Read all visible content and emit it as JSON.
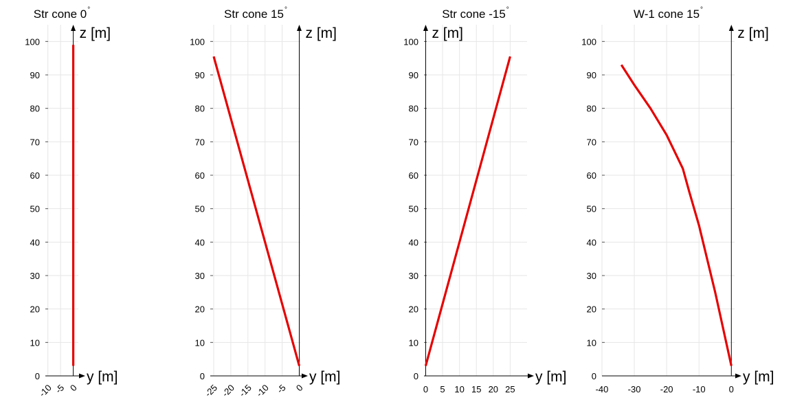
{
  "chart_data": [
    {
      "type": "line",
      "title": "Str cone 0",
      "title_suffix": "°",
      "xlabel": "y [m]",
      "ylabel": "z [m]",
      "xlim": [
        -11,
        2
      ],
      "ylim": [
        0,
        105
      ],
      "xticks": [
        -10,
        -5,
        0
      ],
      "xtick_labels": [
        "-10",
        "-5",
        "0"
      ],
      "yticks": [
        0,
        10,
        20,
        30,
        40,
        50,
        60,
        70,
        80,
        90,
        100
      ],
      "ytick_labels": [
        "0",
        "10",
        "20",
        "30",
        "40",
        "50",
        "60",
        "70",
        "80",
        "90",
        "100"
      ],
      "xtick_rotation": 45,
      "grid": true,
      "color": "#e60000",
      "series": [
        {
          "x": [
            0,
            0
          ],
          "y": [
            3,
            99
          ]
        }
      ]
    },
    {
      "type": "line",
      "title": "Str cone 15",
      "title_suffix": "°",
      "xlabel": "y [m]",
      "ylabel": "z [m]",
      "xlim": [
        -26,
        0.5
      ],
      "ylim": [
        0,
        105
      ],
      "xticks": [
        -25,
        -20,
        -15,
        -10,
        -5,
        0
      ],
      "xtick_labels": [
        "-25",
        "-20",
        "-15",
        "-10",
        "-5",
        "0"
      ],
      "yticks": [
        0,
        10,
        20,
        30,
        40,
        50,
        60,
        70,
        80,
        90,
        100
      ],
      "ytick_labels": [
        "0",
        "10",
        "20",
        "30",
        "40",
        "50",
        "60",
        "70",
        "80",
        "90",
        "100"
      ],
      "xtick_rotation": 45,
      "grid": true,
      "color": "#e60000",
      "series": [
        {
          "x": [
            0,
            -25
          ],
          "y": [
            3,
            95.5
          ]
        }
      ]
    },
    {
      "type": "line",
      "title": "Str cone -15",
      "title_suffix": "°",
      "xlabel": "y [m]",
      "ylabel": "z [m]",
      "xlim": [
        -0.5,
        30
      ],
      "ylim": [
        0,
        105
      ],
      "xticks": [
        0,
        5,
        10,
        15,
        20,
        25
      ],
      "xtick_labels": [
        "0",
        "5",
        "10",
        "15",
        "20",
        "25"
      ],
      "yticks": [
        0,
        10,
        20,
        30,
        40,
        50,
        60,
        70,
        80,
        90,
        100
      ],
      "ytick_labels": [
        "0",
        "10",
        "20",
        "30",
        "40",
        "50",
        "60",
        "70",
        "80",
        "90",
        "100"
      ],
      "xtick_rotation": 0,
      "grid": true,
      "color": "#e60000",
      "series": [
        {
          "x": [
            0,
            25
          ],
          "y": [
            3,
            95.5
          ]
        }
      ]
    },
    {
      "type": "line",
      "title": "W-1 cone 15",
      "title_suffix": "°",
      "xlabel": "y [m]",
      "ylabel": "z [m]",
      "xlim": [
        -40,
        1
      ],
      "ylim": [
        0,
        105
      ],
      "xticks": [
        -40,
        -30,
        -20,
        -10,
        0
      ],
      "xtick_labels": [
        "-40",
        "-30",
        "-20",
        "-10",
        "0"
      ],
      "yticks": [
        0,
        10,
        20,
        30,
        40,
        50,
        60,
        70,
        80,
        90,
        100
      ],
      "ytick_labels": [
        "0",
        "10",
        "20",
        "30",
        "40",
        "50",
        "60",
        "70",
        "80",
        "90",
        "100"
      ],
      "xtick_rotation": 0,
      "grid": true,
      "color": "#e60000",
      "series": [
        {
          "x": [
            0,
            -5,
            -10,
            -13,
            -15,
            -17,
            -20,
            -25,
            -30,
            -34
          ],
          "y": [
            3,
            25,
            45,
            55,
            62,
            66,
            72,
            80,
            87,
            93
          ]
        }
      ]
    }
  ]
}
